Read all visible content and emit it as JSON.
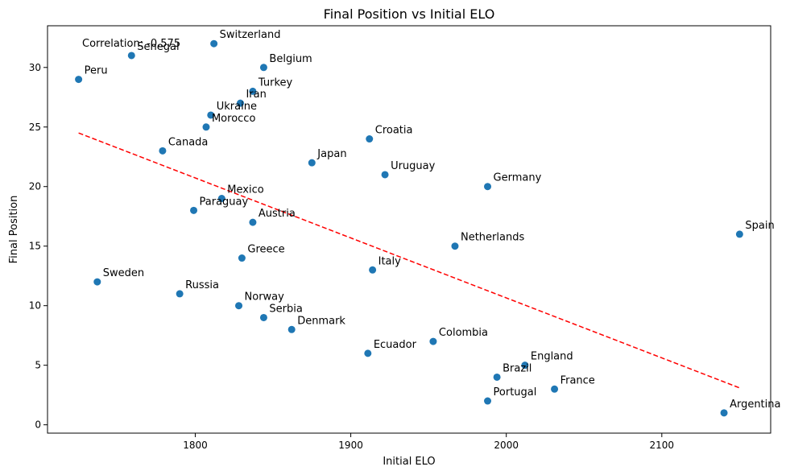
{
  "chart_data": {
    "type": "scatter",
    "title": "Final Position vs Initial ELO",
    "xlabel": "Initial ELO",
    "ylabel": "Final Position",
    "xlim": [
      1705,
      2170
    ],
    "ylim": [
      -0.7,
      33.5
    ],
    "xticks": [
      1800,
      1900,
      2000,
      2100
    ],
    "yticks": [
      0,
      5,
      10,
      15,
      20,
      25,
      30
    ],
    "grid": false,
    "annotation": "Correlation: -0.575",
    "marker_color": "#1f77b4",
    "trend_color": "#ff0000",
    "trendline": {
      "x": [
        1725,
        2150
      ],
      "y": [
        24.5,
        3.1
      ]
    },
    "points": [
      {
        "label": "Argentina",
        "x": 2140,
        "y": 1
      },
      {
        "label": "France",
        "x": 2031,
        "y": 3
      },
      {
        "label": "Brazil",
        "x": 1994,
        "y": 4
      },
      {
        "label": "England",
        "x": 2012,
        "y": 5
      },
      {
        "label": "Portugal",
        "x": 1988,
        "y": 2
      },
      {
        "label": "Colombia",
        "x": 1953,
        "y": 7
      },
      {
        "label": "Ecuador",
        "x": 1911,
        "y": 6
      },
      {
        "label": "Denmark",
        "x": 1862,
        "y": 8
      },
      {
        "label": "Serbia",
        "x": 1844,
        "y": 9
      },
      {
        "label": "Norway",
        "x": 1828,
        "y": 10
      },
      {
        "label": "Russia",
        "x": 1790,
        "y": 11
      },
      {
        "label": "Sweden",
        "x": 1737,
        "y": 12
      },
      {
        "label": "Italy",
        "x": 1914,
        "y": 13
      },
      {
        "label": "Greece",
        "x": 1830,
        "y": 14
      },
      {
        "label": "Netherlands",
        "x": 1967,
        "y": 15
      },
      {
        "label": "Spain",
        "x": 2150,
        "y": 16
      },
      {
        "label": "Austria",
        "x": 1837,
        "y": 17
      },
      {
        "label": "Paraguay",
        "x": 1799,
        "y": 18
      },
      {
        "label": "Mexico",
        "x": 1817,
        "y": 19
      },
      {
        "label": "Germany",
        "x": 1988,
        "y": 20
      },
      {
        "label": "Uruguay",
        "x": 1922,
        "y": 21
      },
      {
        "label": "Japan",
        "x": 1875,
        "y": 22
      },
      {
        "label": "Canada",
        "x": 1779,
        "y": 23
      },
      {
        "label": "Croatia",
        "x": 1912,
        "y": 24
      },
      {
        "label": "Morocco",
        "x": 1807,
        "y": 25
      },
      {
        "label": "Ukraine",
        "x": 1810,
        "y": 26
      },
      {
        "label": "Iran",
        "x": 1829,
        "y": 27
      },
      {
        "label": "Turkey",
        "x": 1837,
        "y": 28
      },
      {
        "label": "Peru",
        "x": 1725,
        "y": 29
      },
      {
        "label": "Belgium",
        "x": 1844,
        "y": 30
      },
      {
        "label": "Senegal",
        "x": 1759,
        "y": 31
      },
      {
        "label": "Switzerland",
        "x": 1812,
        "y": 32
      }
    ]
  }
}
